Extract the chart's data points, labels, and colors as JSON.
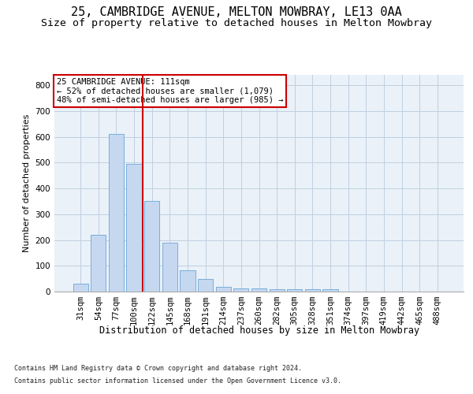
{
  "title1": "25, CAMBRIDGE AVENUE, MELTON MOWBRAY, LE13 0AA",
  "title2": "Size of property relative to detached houses in Melton Mowbray",
  "xlabel": "Distribution of detached houses by size in Melton Mowbray",
  "ylabel": "Number of detached properties",
  "categories": [
    "31sqm",
    "54sqm",
    "77sqm",
    "100sqm",
    "122sqm",
    "145sqm",
    "168sqm",
    "191sqm",
    "214sqm",
    "237sqm",
    "260sqm",
    "282sqm",
    "305sqm",
    "328sqm",
    "351sqm",
    "374sqm",
    "397sqm",
    "419sqm",
    "442sqm",
    "465sqm",
    "488sqm"
  ],
  "values": [
    30,
    220,
    610,
    495,
    350,
    190,
    83,
    50,
    18,
    13,
    13,
    8,
    8,
    8,
    8,
    0,
    0,
    0,
    0,
    0,
    0
  ],
  "bar_color": "#c5d8f0",
  "bar_edge_color": "#7aaedb",
  "vline_x": 3.5,
  "vline_color": "#cc0000",
  "annotation_text": "25 CAMBRIDGE AVENUE: 111sqm\n← 52% of detached houses are smaller (1,079)\n48% of semi-detached houses are larger (985) →",
  "annotation_box_color": "#ffffff",
  "annotation_box_edge_color": "#cc0000",
  "ylim": [
    0,
    840
  ],
  "yticks": [
    0,
    100,
    200,
    300,
    400,
    500,
    600,
    700,
    800
  ],
  "grid_color": "#c0cfe0",
  "background_color": "#eaf1f8",
  "footer1": "Contains HM Land Registry data © Crown copyright and database right 2024.",
  "footer2": "Contains public sector information licensed under the Open Government Licence v3.0.",
  "title1_fontsize": 11,
  "title2_fontsize": 9.5,
  "xlabel_fontsize": 8.5,
  "ylabel_fontsize": 8,
  "tick_fontsize": 7.5,
  "footer_fontsize": 6,
  "annot_fontsize": 7.5
}
